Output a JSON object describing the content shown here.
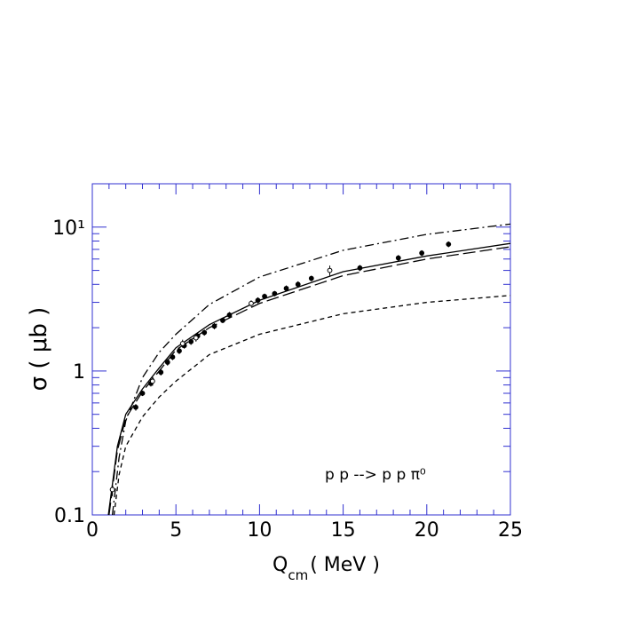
{
  "chart_data": {
    "type": "line",
    "ylabel": "σ ( μb )",
    "xlabel": {
      "main": "Q",
      "sub": "cm",
      "rest": "( MeV )"
    },
    "annotation": "p p --> p p π⁰",
    "log_y": true,
    "frame_color": "#3030d0",
    "xlim": [
      0,
      25
    ],
    "ylim": [
      0.1,
      20
    ],
    "xticks": [
      0,
      5,
      10,
      15,
      20,
      25
    ],
    "xminorticks": [
      1,
      2,
      3,
      4,
      6,
      7,
      8,
      9,
      11,
      12,
      13,
      14,
      16,
      17,
      18,
      19,
      21,
      22,
      23,
      24
    ],
    "yticks": [
      0.1,
      1,
      {
        "value": 10,
        "label": "10¹"
      }
    ],
    "yminorticks": [
      0.2,
      0.3,
      0.4,
      0.5,
      0.6,
      0.7,
      0.8,
      0.9,
      2,
      3,
      4,
      5,
      6,
      7,
      8,
      9
    ],
    "series": [
      {
        "style": "solid",
        "color": "#000000",
        "x": [
          0.96,
          1.5,
          2,
          3,
          4,
          5,
          7,
          10,
          15,
          20,
          25
        ],
        "values": [
          0.1,
          0.3,
          0.5,
          0.75,
          1.05,
          1.45,
          2.1,
          3.1,
          4.9,
          6.3,
          7.7
        ]
      },
      {
        "style": "longdash",
        "color": "#000000",
        "x": [
          1.0,
          1.5,
          2,
          3,
          4,
          5,
          7,
          10,
          15,
          20,
          25
        ],
        "values": [
          0.1,
          0.28,
          0.47,
          0.72,
          1.0,
          1.4,
          2.0,
          2.95,
          4.6,
          6.0,
          7.3
        ]
      },
      {
        "style": "dashdot",
        "color": "#000000",
        "x": [
          1.2,
          1.6,
          2,
          3,
          4,
          5,
          7,
          10,
          15,
          20,
          25
        ],
        "values": [
          0.1,
          0.25,
          0.45,
          0.9,
          1.35,
          1.8,
          2.9,
          4.5,
          6.9,
          8.9,
          10.5
        ]
      },
      {
        "style": "shortdash",
        "color": "#000000",
        "x": [
          1.3,
          1.6,
          2,
          3,
          4,
          5,
          7,
          10,
          15,
          20,
          25
        ],
        "values": [
          0.1,
          0.19,
          0.3,
          0.48,
          0.66,
          0.85,
          1.3,
          1.8,
          2.5,
          3.0,
          3.35
        ]
      }
    ],
    "points": [
      {
        "marker": "filled",
        "x": [
          2.6,
          3.0,
          3.5,
          4.1,
          4.5,
          4.8,
          5.2,
          5.5,
          5.9,
          6.3,
          6.7,
          7.3,
          7.8,
          8.2,
          9.9,
          10.3,
          10.9,
          11.6,
          12.3,
          13.1,
          16.0,
          18.3,
          19.7,
          21.3
        ],
        "values": [
          0.56,
          0.7,
          0.82,
          0.98,
          1.15,
          1.25,
          1.38,
          1.5,
          1.6,
          1.75,
          1.85,
          2.05,
          2.25,
          2.45,
          3.1,
          3.3,
          3.45,
          3.75,
          4.0,
          4.4,
          5.2,
          6.1,
          6.6,
          7.6
        ],
        "errors": [
          0.03,
          0.03,
          0.04,
          0.05,
          0.06,
          0.06,
          0.07,
          0.07,
          0.08,
          0.09,
          0.09,
          0.1,
          0.1,
          0.12,
          0.15,
          0.15,
          0.15,
          0.18,
          0.2,
          0.2,
          0.25,
          0.3,
          0.3,
          0.35
        ]
      },
      {
        "marker": "open",
        "x": [
          1.2,
          3.6,
          5.4,
          6.2,
          9.5,
          14.2
        ],
        "values": [
          0.15,
          0.85,
          1.55,
          1.7,
          2.95,
          5.0
        ],
        "errors": [
          0.015,
          0.06,
          0.1,
          0.1,
          0.15,
          0.4
        ]
      }
    ]
  }
}
